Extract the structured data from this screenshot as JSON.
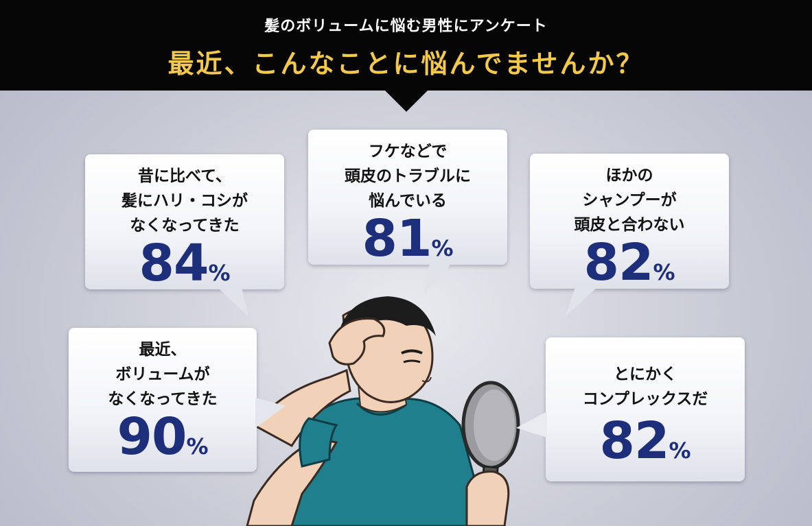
{
  "header": {
    "subtitle": "髪のボリュームに悩む男性にアンケート",
    "title": "最近、こんなことに悩んでませんか？"
  },
  "bubbles": [
    {
      "label": "昔に比べて、\n髪にハリ・コシが\nなくなってきた",
      "value": "84",
      "unit": "%"
    },
    {
      "label": "フケなどで\n頭皮のトラブルに\n悩んでいる",
      "value": "81",
      "unit": "%"
    },
    {
      "label": "ほかの\nシャンプーが\n頭皮と合わない",
      "value": "82",
      "unit": "%"
    },
    {
      "label": "最近、\nボリュームが\nなくなってきた",
      "value": "90",
      "unit": "%"
    },
    {
      "label": "とにかく\nコンプレックスだ",
      "value": "82",
      "unit": "%"
    }
  ],
  "colors": {
    "header_bg": "#050505",
    "title": "#f3c94c",
    "percent": "#1d2e7a",
    "shirt": "#1f7f8c"
  }
}
